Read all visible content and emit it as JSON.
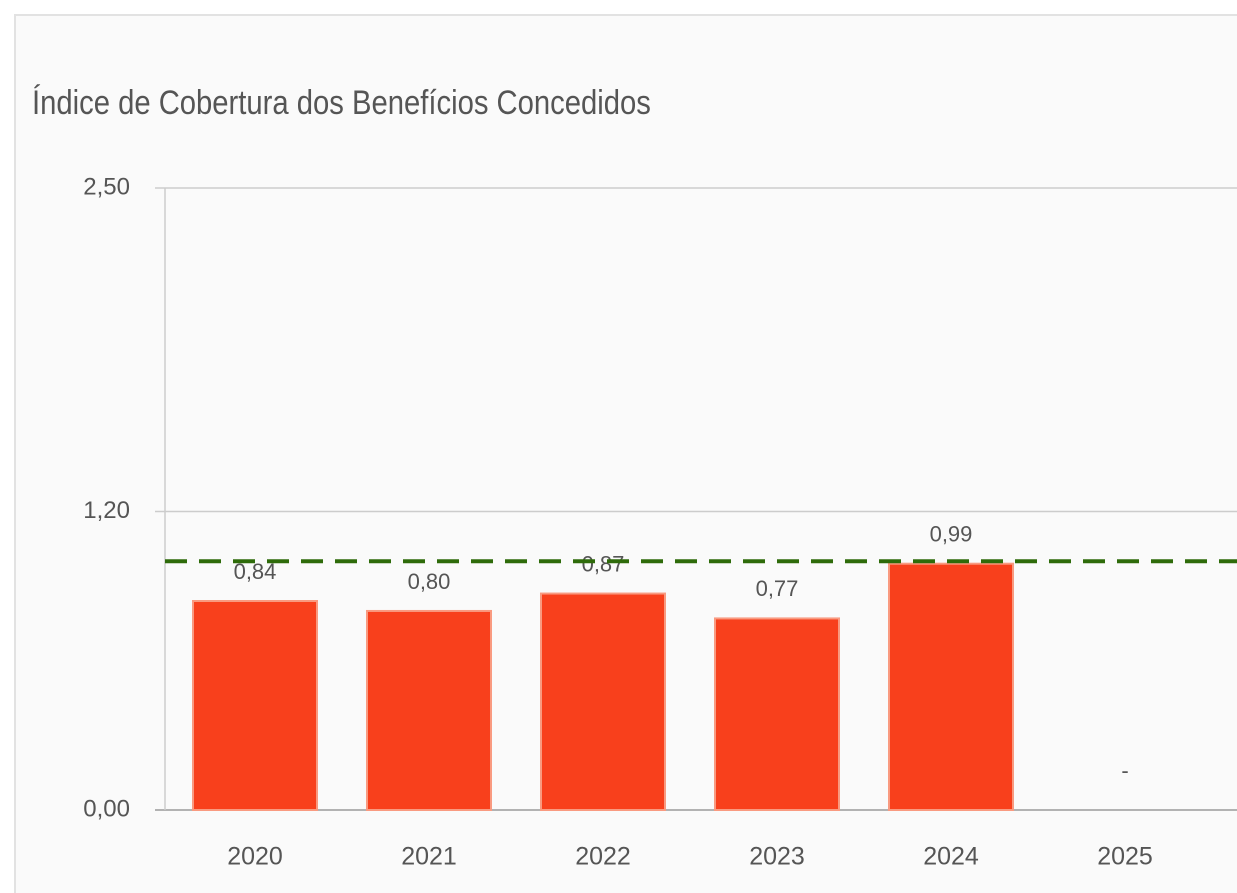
{
  "chart_data": {
    "type": "bar",
    "title": "Índice de Cobertura dos Benefícios Concedidos",
    "categories": [
      "2020",
      "2021",
      "2022",
      "2023",
      "2024",
      "2025"
    ],
    "values": [
      0.84,
      0.8,
      0.87,
      0.77,
      0.99,
      null
    ],
    "value_labels": [
      "0,84",
      "0,80",
      "0,87",
      "0,77",
      "0,99",
      "-"
    ],
    "color": "#f8401c",
    "reference_line": {
      "value": 1.0,
      "color": "#2e6b0a"
    },
    "ylim": [
      0,
      2.5
    ],
    "yticks": [
      {
        "value": 0,
        "label": "0,00"
      },
      {
        "value": 1.2,
        "label": "1,20"
      },
      {
        "value": 2.5,
        "label": "2,50"
      }
    ],
    "grid": true
  }
}
